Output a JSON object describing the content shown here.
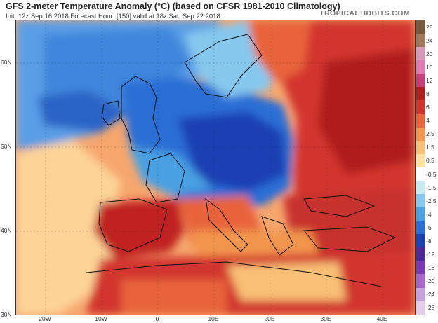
{
  "header": {
    "title": "GFS 2-meter Temperature Anomaly (°C) (based on CFSR 1981-2010 Climatology)",
    "subtitle": "Init: 12z Sep 16 2018   Forecast Hour: [150]   valid at 18z Sat, Sep 22 2018",
    "brand": "TROPICALTIDBITS.COM"
  },
  "map": {
    "lat_labels": [
      "60N",
      "50N",
      "40N",
      "30N"
    ],
    "lon_labels": [
      "20W",
      "10W",
      "0",
      "10E",
      "20E",
      "30E",
      "40E"
    ]
  },
  "colorbar": {
    "labels": [
      "28",
      "24",
      "20",
      "16",
      "12",
      "8",
      "6",
      "4",
      "2.5",
      "1.5",
      "0.5",
      "-0.5",
      "-1.5",
      "-2.5",
      "-4",
      "-6",
      "-8",
      "-12",
      "-16",
      "-20",
      "-24",
      "-28"
    ],
    "colors": [
      "#7a5a3c",
      "#a0785a",
      "#d69ab8",
      "#e07ab0",
      "#c8407a",
      "#b01e1e",
      "#d2342e",
      "#e8643a",
      "#f2964e",
      "#f9c076",
      "#fde0a4",
      "#ffffff",
      "#c8ecf2",
      "#86c8ee",
      "#4aa0e2",
      "#2a6ed6",
      "#1c3fb4",
      "#4a2a9a",
      "#7a3ab4",
      "#a866c8",
      "#c8a0dc",
      "#e6cce8"
    ]
  }
}
